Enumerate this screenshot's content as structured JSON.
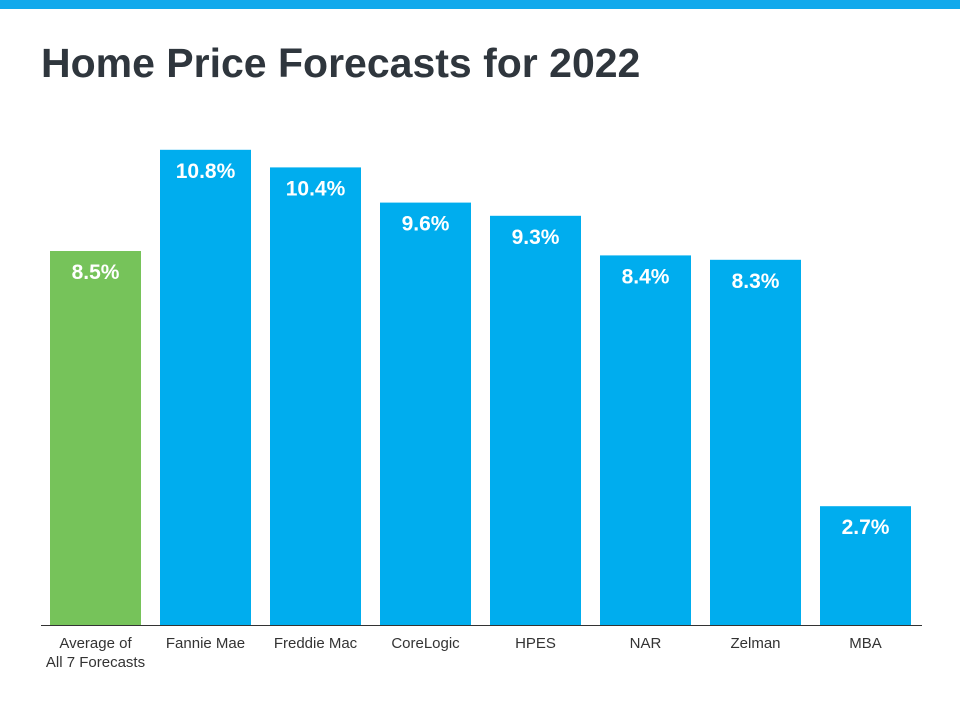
{
  "title": "Home Price Forecasts for 2022",
  "colors": {
    "top_bar": "#12a9ec",
    "average_bar": "#76c35a",
    "forecast_bar": "#00adee"
  },
  "chart_data": {
    "type": "bar",
    "title": "Home Price Forecasts for 2022",
    "categories": [
      [
        "Average of",
        "All 7 Forecasts"
      ],
      [
        "Fannie Mae"
      ],
      [
        "Freddie Mac"
      ],
      [
        "CoreLogic"
      ],
      [
        "HPES"
      ],
      [
        "NAR"
      ],
      [
        "Zelman"
      ],
      [
        "MBA"
      ]
    ],
    "values": [
      8.5,
      10.8,
      10.4,
      9.6,
      9.3,
      8.4,
      8.3,
      2.7
    ],
    "data_labels": [
      "8.5%",
      "10.8%",
      "10.4%",
      "9.6%",
      "9.3%",
      "8.4%",
      "8.3%",
      "2.7%"
    ],
    "highlight_index": 0,
    "xlabel": "",
    "ylabel": "",
    "ylim": [
      0,
      11
    ],
    "grid": false,
    "legend": "none"
  }
}
